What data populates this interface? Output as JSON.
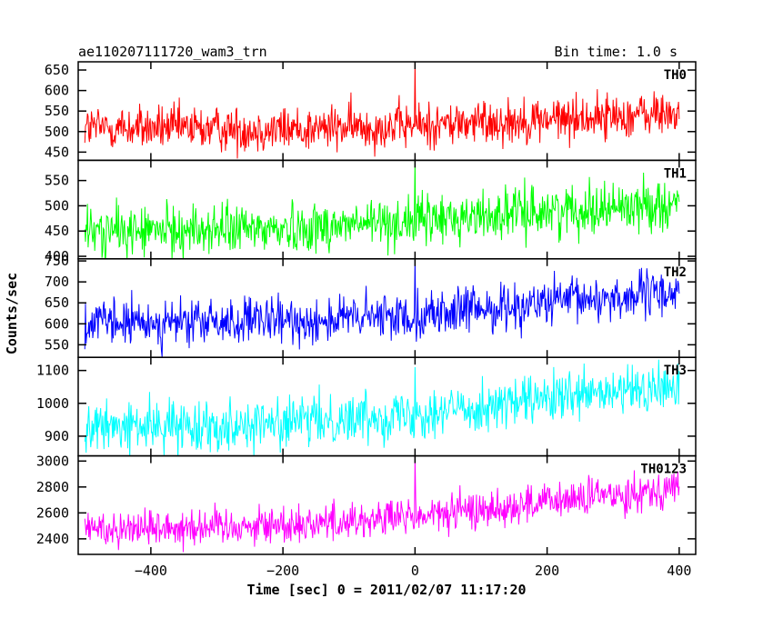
{
  "header": {
    "left_title": "ae110207111720_wam3_trn",
    "right_title": "Bin time: 1.0 s"
  },
  "chart_data": {
    "type": "line",
    "xlabel": "Time [sec] 0 = 2011/02/07 11:17:20",
    "ylabel": "Counts/sec",
    "xlim": [
      -510,
      425
    ],
    "xticks": [
      -400,
      -200,
      0,
      200,
      400
    ],
    "xtick_labels": [
      "−400",
      "−200",
      "0",
      "200",
      "400"
    ],
    "x_range": [
      -500,
      400
    ],
    "bin_time": 1.0,
    "panels": [
      {
        "name": "TH0",
        "color": "#ff0000",
        "ylim": [
          430,
          670
        ],
        "yticks": [
          450,
          500,
          550,
          600,
          650
        ],
        "ytick_labels": [
          "450",
          "500",
          "550",
          "600",
          "650"
        ],
        "baseline": [
          [
            -500,
            510
          ],
          [
            -200,
            505
          ],
          [
            0,
            515
          ],
          [
            200,
            530
          ],
          [
            400,
            545
          ]
        ],
        "noise": 28,
        "spike": {
          "x": 0,
          "y": 670
        }
      },
      {
        "name": "TH1",
        "color": "#00ff00",
        "ylim": [
          395,
          590
        ],
        "yticks": [
          400,
          450,
          500,
          550
        ],
        "ytick_labels": [
          "400",
          "450",
          "500",
          "550"
        ],
        "baseline": [
          [
            -500,
            448
          ],
          [
            -200,
            455
          ],
          [
            0,
            470
          ],
          [
            200,
            490
          ],
          [
            400,
            505
          ]
        ],
        "noise": 25,
        "spike": {
          "x": 0,
          "y": 590
        }
      },
      {
        "name": "TH2",
        "color": "#0000ff",
        "ylim": [
          520,
          755
        ],
        "yticks": [
          550,
          600,
          650,
          700,
          750
        ],
        "ytick_labels": [
          "550",
          "600",
          "650",
          "700",
          "750"
        ],
        "baseline": [
          [
            -500,
            600
          ],
          [
            -200,
            605
          ],
          [
            0,
            620
          ],
          [
            200,
            650
          ],
          [
            400,
            675
          ]
        ],
        "noise": 28,
        "spike": {
          "x": 0,
          "y": 755
        }
      },
      {
        "name": "TH3",
        "color": "#00ffff",
        "ylim": [
          840,
          1140
        ],
        "yticks": [
          900,
          1000,
          1100
        ],
        "ytick_labels": [
          "900",
          "1000",
          "1100"
        ],
        "baseline": [
          [
            -500,
            925
          ],
          [
            -200,
            940
          ],
          [
            0,
            970
          ],
          [
            200,
            1010
          ],
          [
            400,
            1050
          ]
        ],
        "noise": 38,
        "spike": {
          "x": 0,
          "y": 1110
        }
      },
      {
        "name": "TH0123",
        "color": "#ff00ff",
        "ylim": [
          2280,
          3040
        ],
        "yticks": [
          2400,
          2600,
          2800,
          3000
        ],
        "ytick_labels": [
          "2400",
          "2600",
          "2800",
          "3000"
        ],
        "baseline": [
          [
            -500,
            2480
          ],
          [
            -200,
            2510
          ],
          [
            0,
            2570
          ],
          [
            200,
            2680
          ],
          [
            400,
            2800
          ]
        ],
        "noise": 75,
        "spike": {
          "x": 0,
          "y": 3040
        }
      }
    ]
  }
}
